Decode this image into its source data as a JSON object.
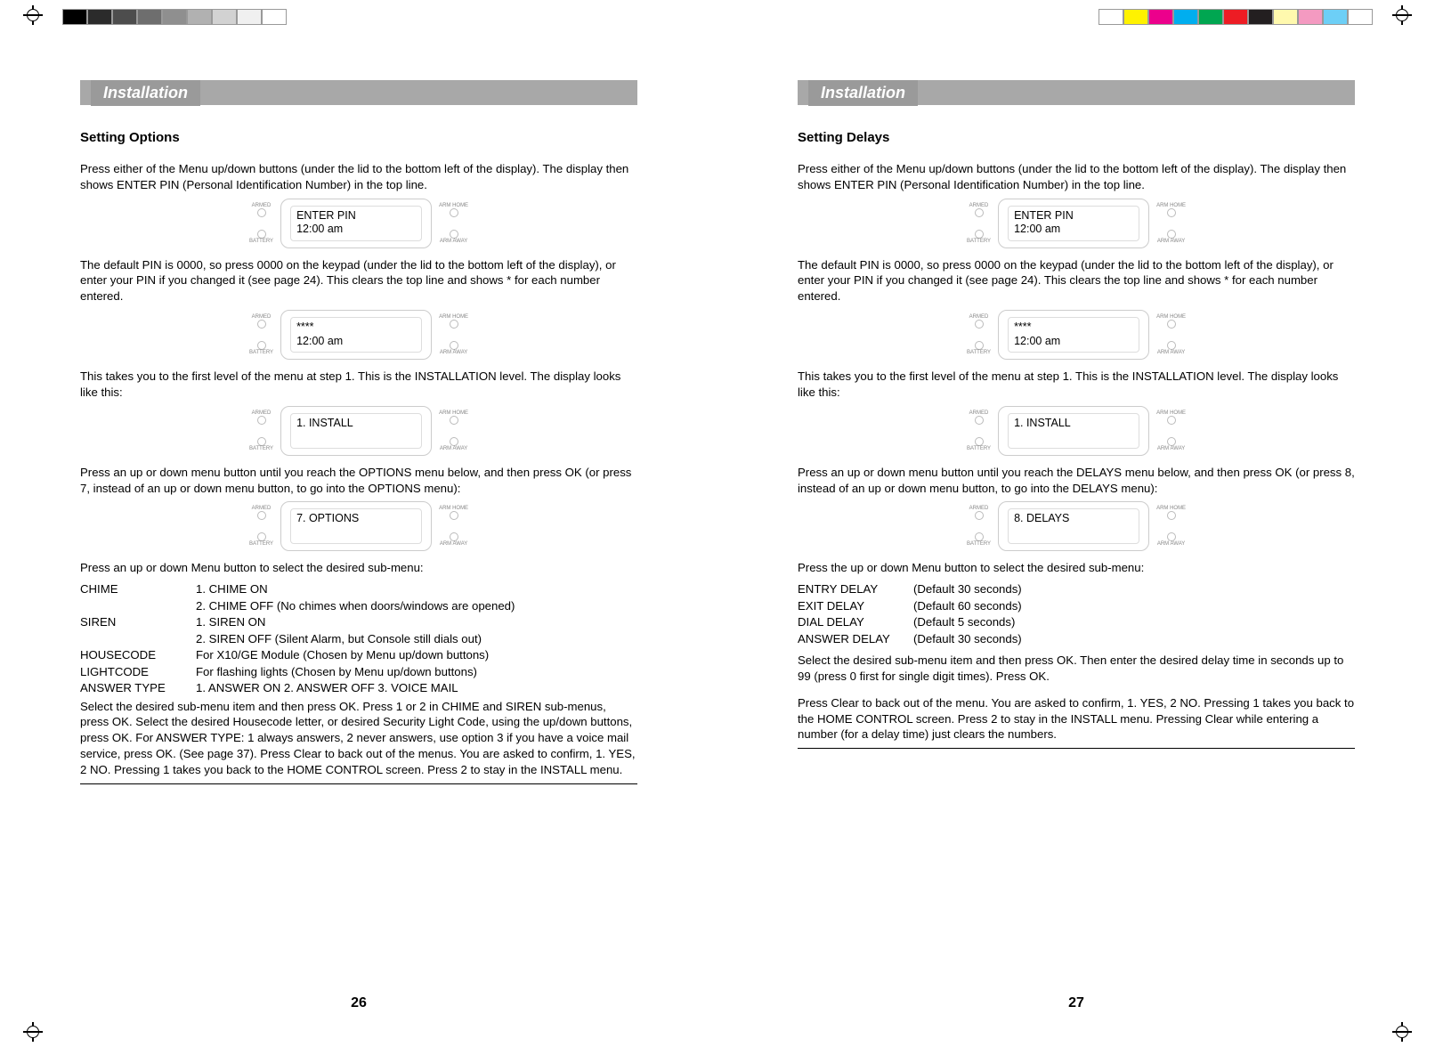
{
  "left": {
    "header": "Installation",
    "section_title": "Setting Options",
    "p1": "Press either of the Menu up/down buttons (under the lid to the bottom left of the display). The display then shows ENTER PIN (Personal Identification Number) in the top line.",
    "lcd1_line1": "ENTER PIN",
    "lcd1_line2": "12:00 am",
    "p2": "The default PIN is 0000, so press 0000 on the keypad (under the lid to the bottom left of the display), or enter your PIN if you changed it (see page 24). This clears the top line and shows * for each number entered.",
    "lcd2_line1": "****",
    "lcd2_line2": "12:00 am",
    "p3": "This takes you to the first level of the menu at step 1. This is the INSTALLATION level. The display looks like this:",
    "lcd3_line1": "1. INSTALL",
    "p4": "Press an up or down menu button until you reach the OPTIONS menu below, and then press OK (or press 7, instead of an up or down menu button, to go into the OPTIONS menu):",
    "lcd4_line1": "7. OPTIONS",
    "p5": "Press an up or down Menu button to select the desired sub-menu:",
    "opts": [
      {
        "k": "CHIME",
        "v": "1. CHIME ON"
      },
      {
        "k": "",
        "v": "2. CHIME OFF (No chimes when doors/windows are opened)"
      },
      {
        "k": "SIREN",
        "v": "1. SIREN ON"
      },
      {
        "k": "",
        "v": "2. SIREN OFF (Silent Alarm, but Console still dials out)"
      },
      {
        "k": "HOUSECODE",
        "v": "For X10/GE Module (Chosen by Menu up/down buttons)"
      },
      {
        "k": "LIGHTCODE",
        "v": "For flashing lights (Chosen by Menu up/down buttons)"
      },
      {
        "k": "ANSWER TYPE",
        "v": "1. ANSWER ON  2. ANSWER OFF  3. VOICE MAIL"
      }
    ],
    "p6": "Select the desired sub-menu item and then press OK. Press 1 or 2 in CHIME and SIREN sub-menus, press OK. Select the desired Housecode letter, or desired Security Light Code, using the up/down buttons, press OK. For ANSWER TYPE: 1 always answers, 2 never answers, use option 3 if you have a voice mail service, press OK. (See page 37). Press Clear to back out of the menus. You are asked to confirm, 1. YES, 2 NO. Pressing 1 takes you back to the HOME CONTROL screen. Press 2 to stay in the INSTALL menu.",
    "pagenum": "26"
  },
  "right": {
    "header": "Installation",
    "section_title": "Setting Delays",
    "p1": "Press either of the Menu up/down buttons (under the lid to the bottom left of the display). The display then shows ENTER PIN (Personal Identification Number) in the top line.",
    "lcd1_line1": "ENTER PIN",
    "lcd1_line2": "12:00 am",
    "p2": "The default PIN is 0000, so press 0000 on the keypad (under the lid to the bottom left of the display), or enter your PIN if you changed it (see page 24). This clears the top line and shows * for each number entered.",
    "lcd2_line1": "****",
    "lcd2_line2": "12:00 am",
    "p3": "This takes you to the first level of the menu at step 1. This is the INSTALLATION level. The display looks like this:",
    "lcd3_line1": "1. INSTALL",
    "p4": "Press an up or down menu button until you reach the DELAYS menu below, and then press OK (or press 8, instead of an up or down menu button, to go into the DELAYS menu):",
    "lcd4_line1": "8. DELAYS",
    "p5": "Press the up or down Menu button to select the desired sub-menu:",
    "opts": [
      {
        "k": "ENTRY DELAY",
        "v": "(Default 30 seconds)"
      },
      {
        "k": "EXIT DELAY",
        "v": "(Default 60 seconds)"
      },
      {
        "k": "DIAL DELAY",
        "v": "(Default 5 seconds)"
      },
      {
        "k": "ANSWER DELAY",
        "v": "(Default 30 seconds)"
      }
    ],
    "p6": "Select the desired sub-menu item and then press OK. Then enter the desired delay time in seconds up to 99 (press 0 first for single digit times). Press OK.",
    "p7": "Press Clear to back out of the menu. You are asked to confirm, 1. YES, 2 NO. Pressing 1 takes you back to the HOME CONTROL screen. Press 2 to stay in the INSTALL menu. Pressing Clear while entering a number (for a delay time) just clears the numbers.",
    "pagenum": "27"
  },
  "lcd_labels": {
    "tl": "ARMED",
    "bl": "BATTERY",
    "tr": "ARM HOME",
    "br": "ARM AWAY"
  },
  "swatches_left": [
    "#000000",
    "#2b2b2b",
    "#4d4d4d",
    "#6e6e6e",
    "#8f8f8f",
    "#b1b1b1",
    "#d2d2d2",
    "#f0f0f0",
    "#ffffff"
  ],
  "swatches_right": [
    "#ffffff",
    "#fff200",
    "#ec008c",
    "#00aeef",
    "#00a651",
    "#ed1c24",
    "#231f20",
    "#fff9ae",
    "#f49ac1",
    "#6dcff6",
    "#ffffff"
  ]
}
